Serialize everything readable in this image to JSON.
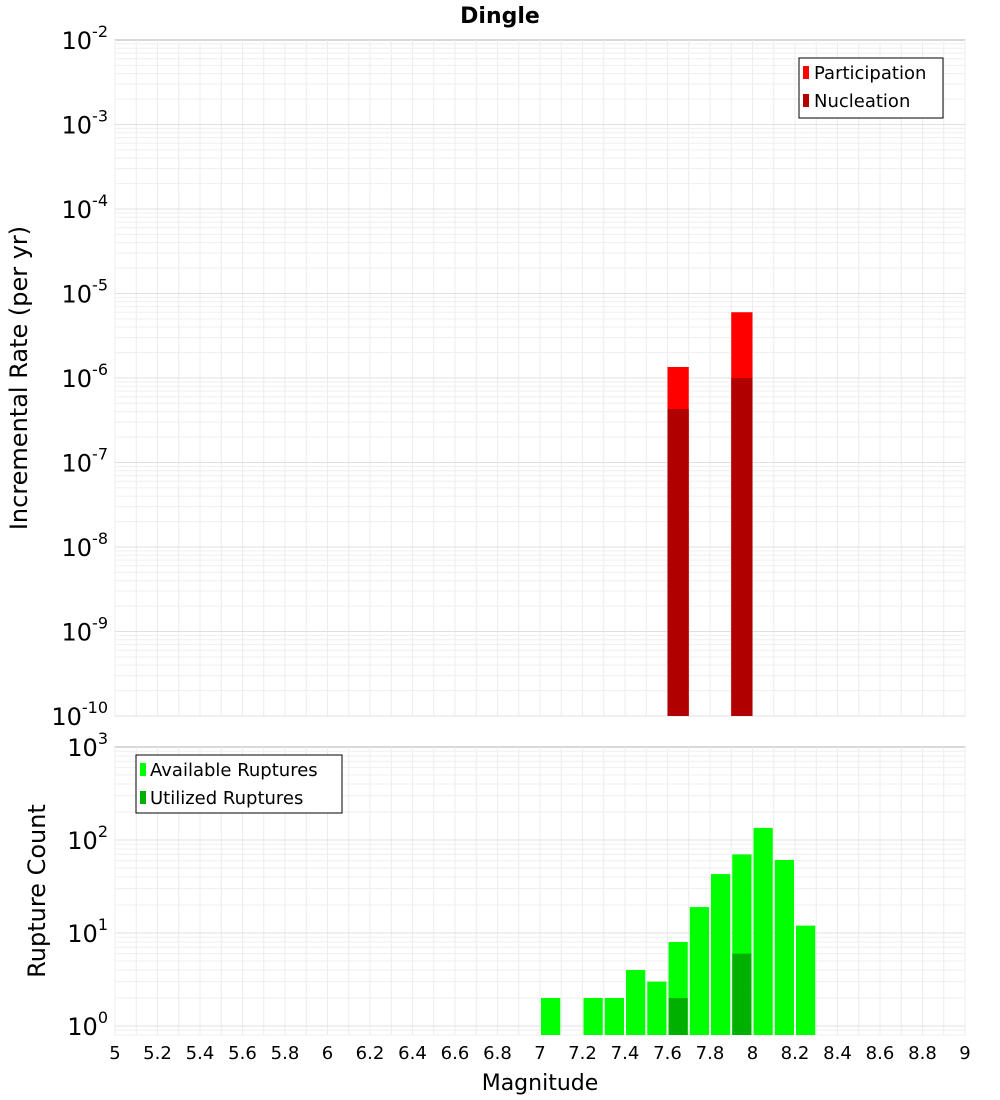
{
  "title": "Dingle",
  "chart_data": [
    {
      "type": "bar",
      "name": "incremental-rate",
      "ylabel": "Incremental Rate (per yr)",
      "xlabel": "Magnitude",
      "yscale": "log",
      "ylim": [
        1e-10,
        0.01
      ],
      "xlim": [
        5,
        9
      ],
      "y_tick_exponents": [
        "-2",
        "-3",
        "-4",
        "-5",
        "-6",
        "-7",
        "-8",
        "-9",
        "-10"
      ],
      "y_tick_base": "10",
      "legend": {
        "position": "top-right",
        "entries": [
          {
            "label": "Participation",
            "color": "#ff0000"
          },
          {
            "label": "Nucleation",
            "color": "#b00000"
          }
        ]
      },
      "series": [
        {
          "name": "Participation",
          "color": "#ff0000",
          "x": [
            7.65,
            7.95
          ],
          "values": [
            1.35e-06,
            6e-06
          ]
        },
        {
          "name": "Nucleation",
          "color": "#b00000",
          "x": [
            7.65,
            7.95
          ],
          "values": [
            4.3e-07,
            1e-06
          ]
        }
      ],
      "grid": true
    },
    {
      "type": "bar",
      "name": "rupture-count",
      "ylabel": "Rupture Count",
      "xlabel": "Magnitude",
      "yscale": "log",
      "ylim": [
        0.8,
        1000
      ],
      "xlim": [
        5,
        9
      ],
      "y_tick_exponents": [
        "3",
        "2",
        "1",
        "0"
      ],
      "y_tick_base": "10",
      "x_ticks": [
        "5",
        "5.2",
        "5.4",
        "5.6",
        "5.8",
        "6",
        "6.2",
        "6.4",
        "6.6",
        "6.8",
        "7",
        "7.2",
        "7.4",
        "7.6",
        "7.8",
        "8",
        "8.2",
        "8.4",
        "8.6",
        "8.8",
        "9"
      ],
      "legend": {
        "position": "top-left",
        "entries": [
          {
            "label": "Available Ruptures",
            "color": "#00ff00"
          },
          {
            "label": "Utilized Ruptures",
            "color": "#00b000"
          }
        ]
      },
      "series": [
        {
          "name": "Available Ruptures",
          "color": "#00ff00",
          "x": [
            7.05,
            7.25,
            7.35,
            7.45,
            7.55,
            7.65,
            7.75,
            7.85,
            7.95,
            8.05,
            8.15,
            8.25
          ],
          "values": [
            2,
            2,
            2,
            4,
            3,
            8,
            19,
            43,
            70,
            135,
            61,
            12
          ]
        },
        {
          "name": "Utilized Ruptures",
          "color": "#00b000",
          "x": [
            7.65,
            7.95
          ],
          "values": [
            2,
            6
          ]
        }
      ],
      "grid": true
    }
  ]
}
